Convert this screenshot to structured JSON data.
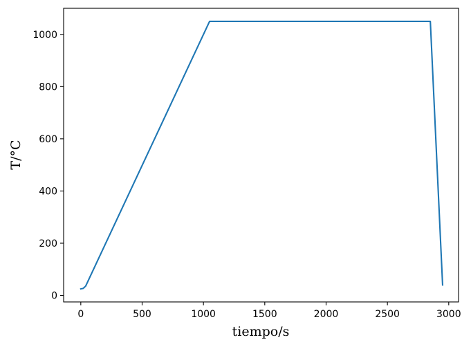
{
  "chart_data": {
    "type": "line",
    "title": "",
    "xlabel": "tiempo/s",
    "ylabel": "T/°C",
    "xlim": [
      -140,
      3080
    ],
    "ylim": [
      -25,
      1100
    ],
    "xticks": [
      0,
      500,
      1000,
      1500,
      2000,
      2500,
      3000
    ],
    "yticks": [
      0,
      200,
      400,
      600,
      800,
      1000
    ],
    "xtick_labels": [
      "0",
      "500",
      "1000",
      "1500",
      "2000",
      "2500",
      "3000"
    ],
    "ytick_labels": [
      "0",
      "200",
      "400",
      "600",
      "800",
      "1000"
    ],
    "grid": false,
    "legend": false,
    "series": [
      {
        "color": "#1f77b4",
        "x": [
          0,
          20,
          40,
          1050,
          2850,
          2950
        ],
        "y": [
          25,
          27,
          36,
          1050,
          1050,
          40
        ]
      }
    ]
  }
}
